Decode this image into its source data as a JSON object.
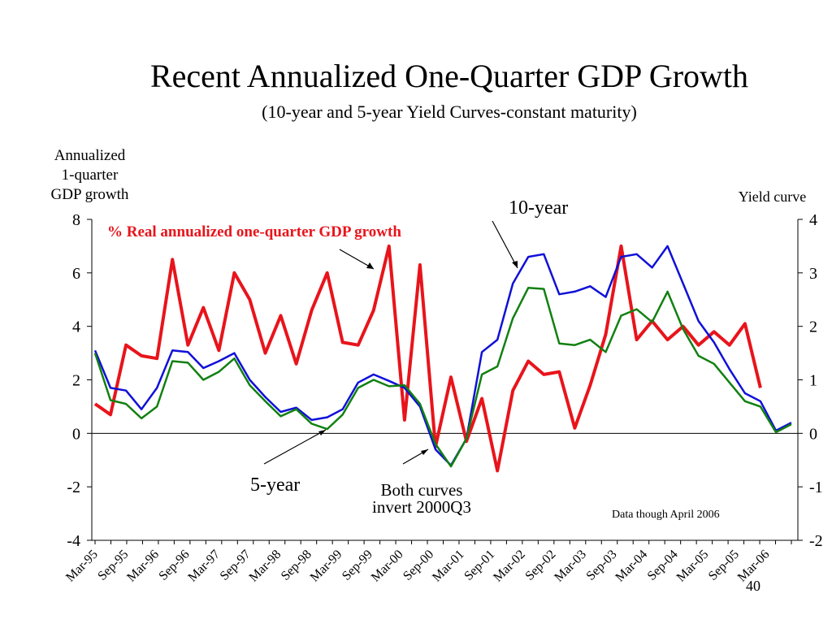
{
  "title": "Recent Annualized One-Quarter GDP Growth",
  "subtitle": "(10-year and 5-year Yield Curves-constant maturity)",
  "left_axis_label": [
    "Annualized",
    "1-quarter",
    "GDP growth"
  ],
  "right_axis_label": "Yield curve",
  "annotations": {
    "gdp_label": "% Real annualized one-quarter GDP growth",
    "ten_year": "10-year",
    "five_year": "5-year",
    "invert_line1": "Both curves",
    "invert_line2": "invert 2000Q3",
    "data_note": "Data though April 2006",
    "slide_number": "40"
  },
  "colors": {
    "gdp": "#e8141b",
    "ten_year": "#1010d8",
    "five_year": "#128012",
    "gdp_label": "#e8141b"
  },
  "chart_data": {
    "type": "line",
    "x_tick_labels": [
      "Mar-95",
      "Sep-95",
      "Mar-96",
      "Sep-96",
      "Mar-97",
      "Sep-97",
      "Mar-98",
      "Sep-98",
      "Mar-99",
      "Sep-99",
      "Mar-00",
      "Sep-00",
      "Mar-01",
      "Sep-01",
      "Mar-02",
      "Sep-02",
      "Mar-03",
      "Sep-03",
      "Mar-04",
      "Sep-04",
      "Mar-05",
      "Sep-05",
      "Mar-06"
    ],
    "left_axis": {
      "ylim": [
        -4,
        8
      ],
      "ticks": [
        "8",
        "6",
        "4",
        "2",
        "0",
        "-2",
        "-4"
      ]
    },
    "right_axis": {
      "ylim": [
        -2,
        4
      ],
      "ticks": [
        "4",
        "3",
        "2",
        "1",
        "0",
        "-1",
        "-2"
      ]
    },
    "series": [
      {
        "name": "% Real annualized one-quarter GDP growth",
        "axis": "left",
        "x_index": [
          0,
          1,
          2,
          3,
          4,
          5,
          6,
          7,
          8,
          9,
          10,
          11,
          12,
          13,
          14,
          15,
          16,
          17,
          18,
          19,
          20,
          21,
          22,
          23,
          24,
          25,
          26,
          27,
          28,
          29,
          30,
          31,
          32,
          33,
          34,
          35,
          36,
          37,
          38,
          39,
          40,
          41,
          42,
          43
        ],
        "values": [
          1.1,
          0.7,
          3.3,
          2.9,
          2.8,
          6.5,
          3.3,
          4.7,
          3.1,
          6.0,
          5.0,
          3.0,
          4.4,
          2.6,
          4.6,
          6.0,
          3.4,
          3.3,
          4.6,
          7.0,
          0.5,
          6.3,
          -0.5,
          2.1,
          -0.3,
          1.3,
          -1.4,
          1.6,
          2.7,
          2.2,
          2.3,
          0.2,
          1.8,
          3.7,
          7.0,
          3.5,
          4.2,
          3.5,
          4.0,
          3.3,
          3.8,
          3.3,
          4.1,
          1.7
        ]
      },
      {
        "name": "10-year",
        "axis": "right",
        "x_index": [
          0,
          1,
          2,
          3,
          4,
          5,
          6,
          7,
          8,
          9,
          10,
          11,
          12,
          13,
          14,
          15,
          16,
          17,
          18,
          19,
          20,
          21,
          22,
          23,
          24,
          25,
          26,
          27,
          28,
          29,
          30,
          31,
          32,
          33,
          34,
          35,
          36,
          37,
          38,
          39,
          40,
          41,
          42,
          43,
          44,
          45
        ],
        "values": [
          1.55,
          0.85,
          0.8,
          0.45,
          0.85,
          1.55,
          1.52,
          1.22,
          1.35,
          1.5,
          1.0,
          0.68,
          0.4,
          0.48,
          0.25,
          0.3,
          0.45,
          0.95,
          1.1,
          0.98,
          0.85,
          0.5,
          -0.3,
          -0.6,
          -0.1,
          1.52,
          1.75,
          2.8,
          3.3,
          3.35,
          2.6,
          2.65,
          2.75,
          2.55,
          3.3,
          3.35,
          3.1,
          3.5,
          2.8,
          2.1,
          1.7,
          1.2,
          0.75,
          0.6,
          0.05,
          0.2
        ]
      },
      {
        "name": "5-year",
        "axis": "right",
        "x_index": [
          0,
          1,
          2,
          3,
          4,
          5,
          6,
          7,
          8,
          9,
          10,
          11,
          12,
          13,
          14,
          15,
          16,
          17,
          18,
          19,
          20,
          21,
          22,
          23,
          24,
          25,
          26,
          27,
          28,
          29,
          30,
          31,
          32,
          33,
          34,
          35,
          36,
          37,
          38,
          39,
          40,
          41,
          42,
          43,
          44,
          45
        ],
        "values": [
          1.5,
          0.62,
          0.55,
          0.28,
          0.5,
          1.35,
          1.32,
          1.0,
          1.15,
          1.4,
          0.9,
          0.6,
          0.32,
          0.45,
          0.18,
          0.08,
          0.35,
          0.85,
          1.0,
          0.88,
          0.9,
          0.55,
          -0.2,
          -0.62,
          -0.1,
          1.1,
          1.25,
          2.15,
          2.72,
          2.7,
          1.68,
          1.65,
          1.75,
          1.52,
          2.2,
          2.32,
          2.08,
          2.65,
          1.95,
          1.45,
          1.3,
          0.95,
          0.6,
          0.5,
          0.02,
          0.17
        ]
      }
    ]
  }
}
